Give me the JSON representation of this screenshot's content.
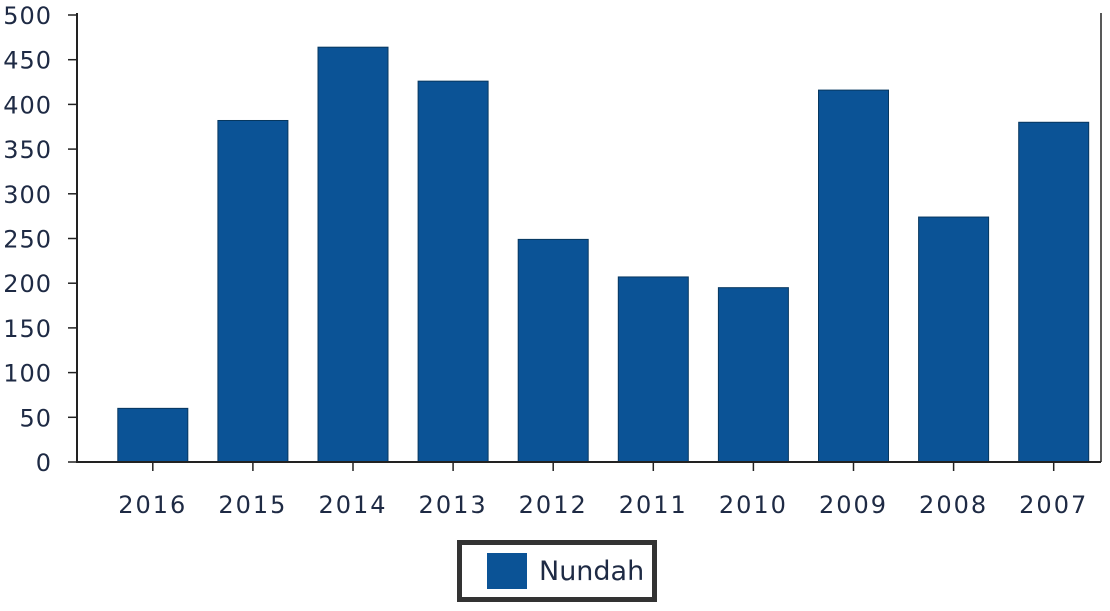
{
  "chart_data": {
    "type": "bar",
    "title": "",
    "xlabel": "",
    "ylabel": "",
    "categories": [
      "2016",
      "2015",
      "2014",
      "2013",
      "2012",
      "2011",
      "2010",
      "2009",
      "2008",
      "2007"
    ],
    "series": [
      {
        "name": "Nundah",
        "values": [
          60,
          382,
          464,
          426,
          249,
          207,
          195,
          416,
          274,
          380
        ],
        "color": "#0b5396"
      }
    ],
    "ylim": [
      0,
      500
    ],
    "yticks": [
      "0",
      "50",
      "100",
      "150",
      "200",
      "250",
      "300",
      "350",
      "400",
      "450",
      "500"
    ],
    "grid": false,
    "legend_position": "bottom-center"
  }
}
